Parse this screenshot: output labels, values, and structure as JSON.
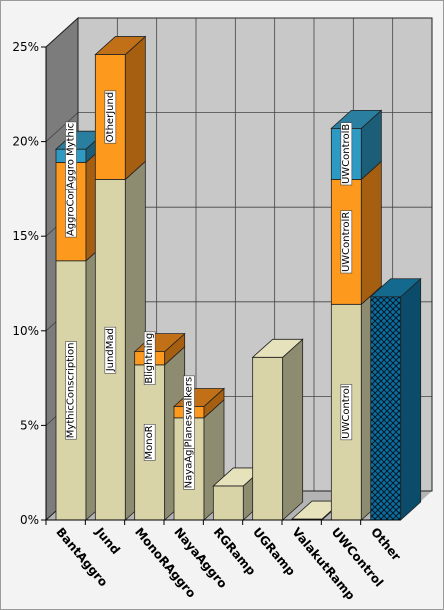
{
  "chart_data": {
    "type": "bar",
    "stacked": true,
    "style": "3d",
    "grid": true,
    "legend": "none",
    "title": "",
    "xlabel": "",
    "ylabel": "",
    "ylim": [
      0,
      25
    ],
    "y_ticks": [
      "0%",
      "5%",
      "10%",
      "15%",
      "20%",
      "25%"
    ],
    "categories": [
      "BantAggro",
      "Jund",
      "MonoRAggro",
      "NayaAggro",
      "RGRamp",
      "UGRamp",
      "ValakutRamp",
      "UWControl",
      "Other"
    ],
    "colors": {
      "segment": "#d8d4a8",
      "segment_side": "#8e8c70",
      "orange": "#fd9a1e",
      "orange_side": "#a65e10",
      "blue": "#2e9ac4",
      "blue_side": "#1c5e78",
      "other": "#0a6fa0",
      "wall": "#c8c8c8",
      "left_wall": "#7c7c7c"
    },
    "stacks": [
      [
        {
          "value": 13.7,
          "label": "MythicConscription",
          "color": "tan"
        },
        {
          "value": 5.2,
          "label": "AggroCon",
          "color": "orange"
        },
        {
          "value": 0.7,
          "label": "Aggro Mythic",
          "color": "blue"
        }
      ],
      [
        {
          "value": 18.0,
          "label": "JundMad",
          "color": "tan"
        },
        {
          "value": 6.6,
          "label": "OtherJund",
          "color": "orange"
        }
      ],
      [
        {
          "value": 8.2,
          "label": "MonoR",
          "color": "tan"
        },
        {
          "value": 0.7,
          "label": "Blightning",
          "color": "orange"
        }
      ],
      [
        {
          "value": 5.4,
          "label": "NayaAg",
          "color": "tan"
        },
        {
          "value": 0.6,
          "label": "Planeswalkers",
          "color": "orange"
        }
      ],
      [
        {
          "value": 1.8,
          "label": "",
          "color": "tan"
        }
      ],
      [
        {
          "value": 8.6,
          "label": "",
          "color": "tan"
        }
      ],
      [
        {
          "value": 0.05,
          "label": "",
          "color": "tan"
        }
      ],
      [
        {
          "value": 11.4,
          "label": "UWControl",
          "color": "tan"
        },
        {
          "value": 6.6,
          "label": "UWControlR",
          "color": "orange"
        },
        {
          "value": 2.7,
          "label": "UWControlB",
          "color": "blue"
        }
      ],
      [
        {
          "value": 11.8,
          "label": "",
          "color": "other"
        }
      ]
    ]
  }
}
